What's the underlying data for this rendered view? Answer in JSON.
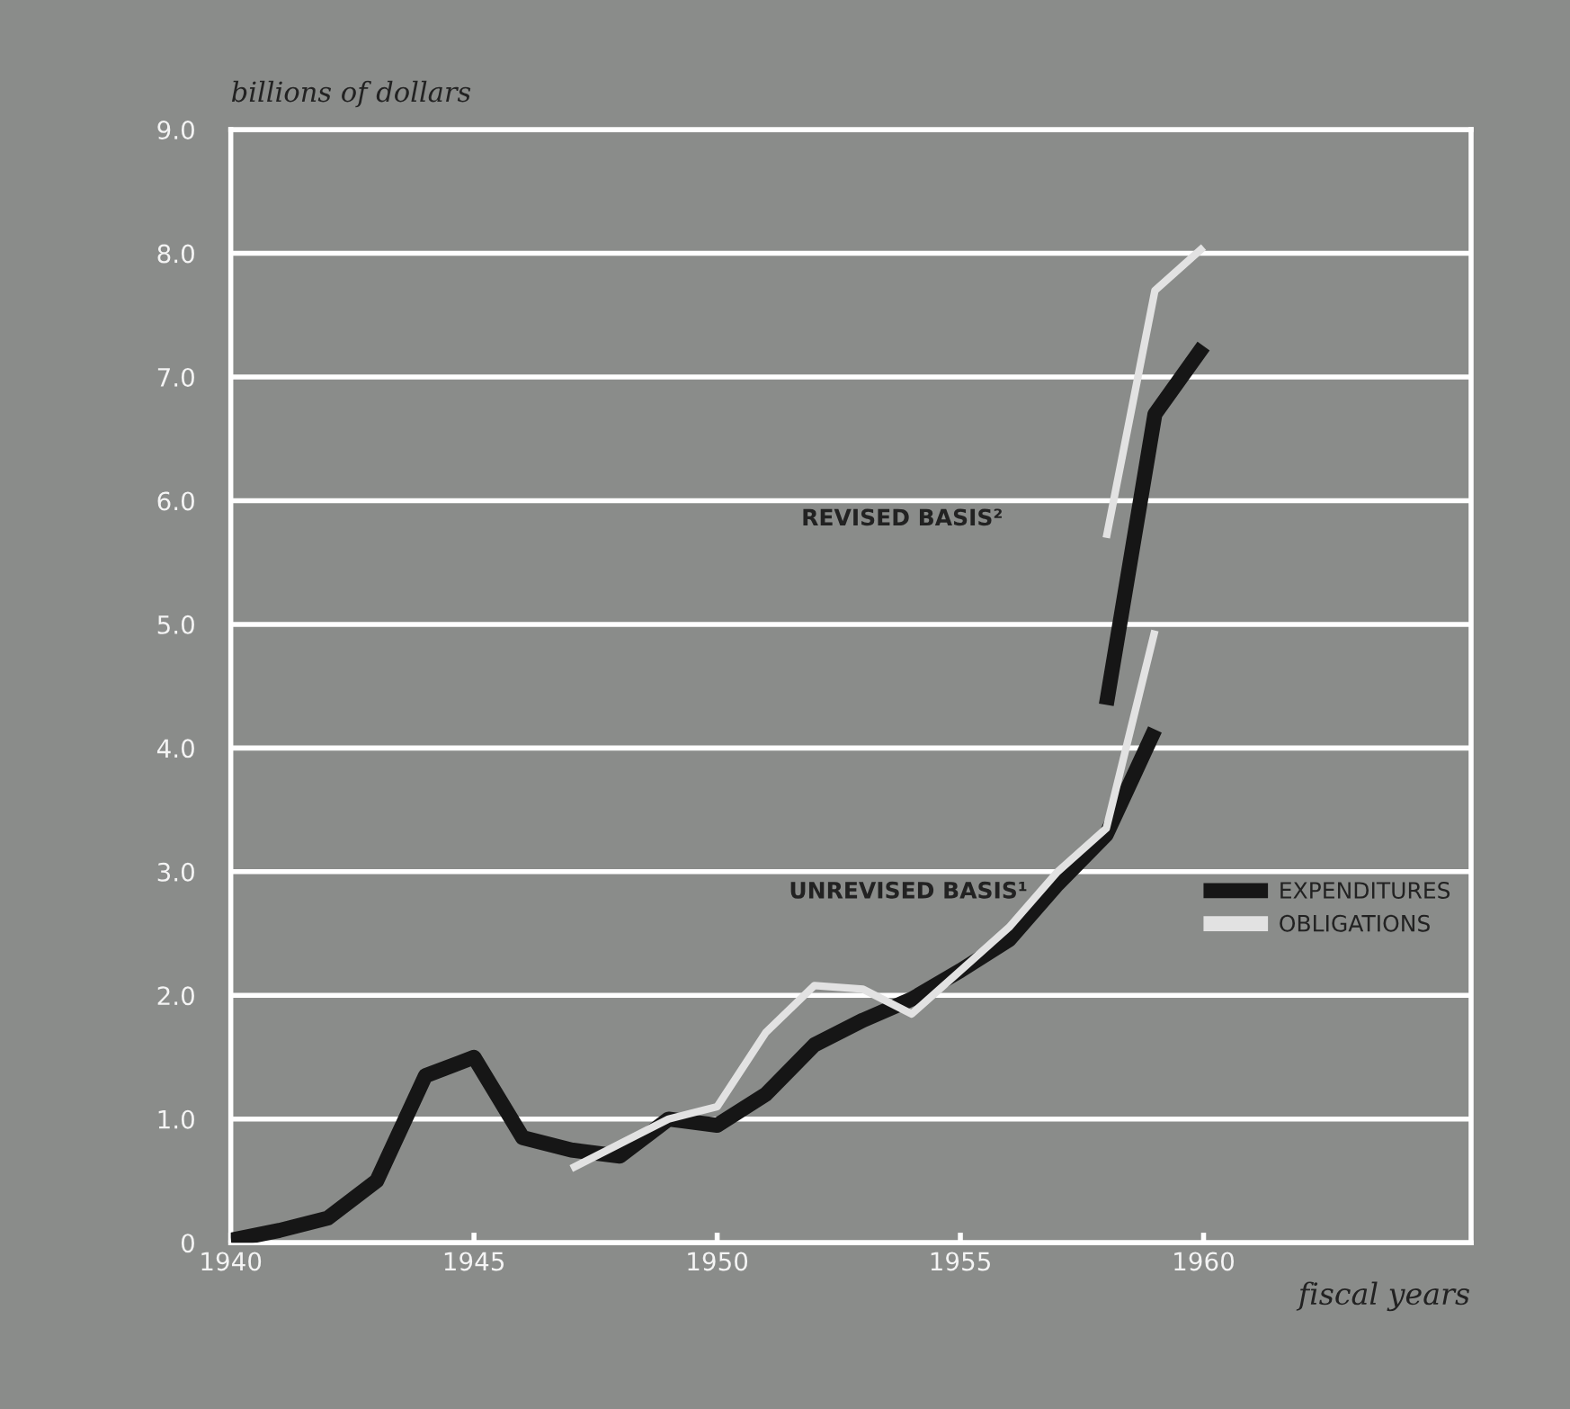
{
  "chart_data": {
    "type": "line",
    "ylabel": "billions of dollars",
    "xlabel": "fiscal years",
    "annotations": [
      "REVISED BASIS²",
      "UNREVISED BASIS¹"
    ],
    "xlim": [
      1940,
      1965.5
    ],
    "xticks": [
      1940,
      1945,
      1950,
      1955,
      1960
    ],
    "ylim": [
      0,
      9.0
    ],
    "yticks": [
      0,
      {
        "value": 1,
        "label": "1.0"
      },
      {
        "value": 2,
        "label": "2.0"
      },
      {
        "value": 3,
        "label": "3.0"
      },
      {
        "value": 4,
        "label": "4.0"
      },
      {
        "value": 5,
        "label": "5.0"
      },
      {
        "value": 6,
        "label": "6.0"
      },
      {
        "value": 7,
        "label": "7.0"
      },
      {
        "value": 8,
        "label": "8.0"
      },
      {
        "value": 9,
        "label": "9.0"
      }
    ],
    "grid": "y",
    "legend": "right",
    "marker": "none",
    "line_style": "solid",
    "series": [
      {
        "name": "EXPENDITURES",
        "color": "#161616",
        "x": [
          1940,
          1941,
          1942,
          1943,
          1944,
          1945,
          1946,
          1947,
          1948,
          1949,
          1950,
          1951,
          1952,
          1953,
          1954,
          1955,
          1956,
          1957,
          1958,
          1959
        ],
        "values": [
          0.02,
          0.1,
          0.2,
          0.5,
          1.35,
          1.5,
          0.85,
          0.75,
          0.7,
          1.0,
          0.95,
          1.2,
          1.6,
          1.8,
          1.97,
          2.2,
          2.45,
          2.9,
          3.3,
          4.15
        ]
      },
      {
        "name": "OBLIGATIONS",
        "color": "#e2e2e2",
        "x": [
          1947,
          1948,
          1949,
          1950,
          1951,
          1952,
          1953,
          1954,
          1955,
          1956,
          1957,
          1958,
          1959
        ],
        "values": [
          0.6,
          0.8,
          1.0,
          1.1,
          1.7,
          2.08,
          2.05,
          1.85,
          2.2,
          2.55,
          3.0,
          3.35,
          4.95
        ]
      },
      {
        "color": "#161616",
        "x": [
          1958,
          1959,
          1960
        ],
        "values": [
          4.35,
          6.7,
          7.25
        ]
      },
      {
        "color": "#e2e2e2",
        "x": [
          1958,
          1959,
          1960
        ],
        "values": [
          5.7,
          7.7,
          8.05
        ]
      }
    ]
  }
}
